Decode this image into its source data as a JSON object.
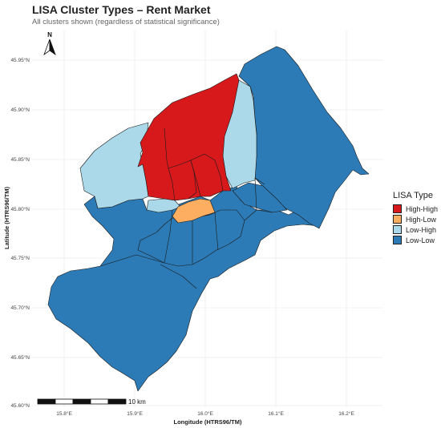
{
  "title": "LISA Cluster Types – Rent Market",
  "subtitle": "All clusters shown (regardless of statistical significance)",
  "colors": {
    "High-High": "#d7191c",
    "High-Low": "#fdae61",
    "Low-High": "#abd9e9",
    "Low-Low": "#2c7bb6"
  },
  "axes": {
    "x_label": "Longitude (HTRS96/TM)",
    "y_label": "Latitude (HTRS96/TM)",
    "x_ticks": [
      "15.8°E",
      "15.9°E",
      "16.0°E",
      "16.1°E",
      "16.2°E"
    ],
    "y_ticks": [
      "45.95°N",
      "45.90°N",
      "45.85°N",
      "45.80°N",
      "45.75°N",
      "45.70°N",
      "45.65°N",
      "45.60°N"
    ]
  },
  "legend": {
    "title": "LISA Type",
    "items": [
      {
        "label": "High-High",
        "color": "#d7191c"
      },
      {
        "label": "High-Low",
        "color": "#fdae61"
      },
      {
        "label": "Low-High",
        "color": "#abd9e9"
      },
      {
        "label": "Low-Low",
        "color": "#2c7bb6"
      }
    ]
  },
  "scale_bar": {
    "label": "10 km"
  },
  "north_arrow": {
    "label": "N"
  }
}
